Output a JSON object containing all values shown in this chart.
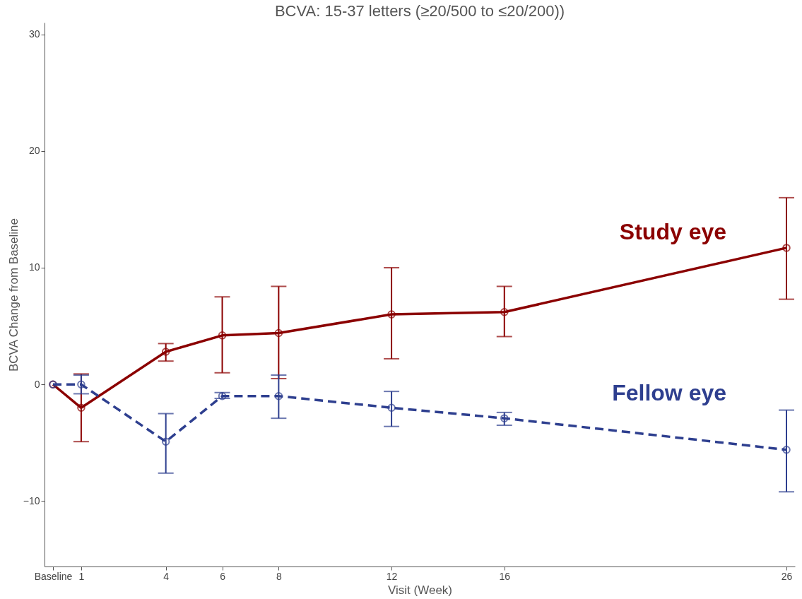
{
  "chart_data": {
    "type": "line",
    "title": "BCVA: 15-37 letters (≥20/500 to ≤20/200))",
    "xlabel": "Visit (Week)",
    "ylabel": "BCVA Change from Baseline",
    "x": [
      0,
      1,
      4,
      6,
      8,
      12,
      16,
      26
    ],
    "xlim": [
      -0.3,
      26.3
    ],
    "xticks": [
      {
        "value": 0,
        "label": "Baseline"
      },
      1,
      4,
      6,
      8,
      12,
      16,
      26
    ],
    "ylim": [
      -15.6,
      31
    ],
    "yticks": [
      -10,
      0,
      10,
      20,
      30
    ],
    "series": [
      {
        "name": "Study eye",
        "color": "#8b0000",
        "line_style": "solid",
        "values": [
          0,
          -2.0,
          2.8,
          4.2,
          4.4,
          6.0,
          6.2,
          11.7
        ],
        "errors": [
          null,
          [
            -4.9,
            0.9
          ],
          [
            2.0,
            3.5
          ],
          [
            1.0,
            7.5
          ],
          [
            0.5,
            8.4
          ],
          [
            2.2,
            10.0
          ],
          [
            4.1,
            8.4
          ],
          [
            7.3,
            16.0
          ]
        ]
      },
      {
        "name": "Fellow eye",
        "color": "#2e3f8f",
        "line_style": "dashed",
        "values": [
          0,
          0,
          -4.9,
          -1.0,
          -1.0,
          -2.0,
          -2.9,
          -5.6
        ],
        "errors": [
          null,
          [
            -0.8,
            0.8
          ],
          [
            -7.6,
            -2.5
          ],
          [
            -1.2,
            -0.7
          ],
          [
            -2.9,
            0.8
          ],
          [
            -3.6,
            -0.6
          ],
          [
            -3.5,
            -2.4
          ],
          [
            -9.2,
            -2.2
          ]
        ]
      }
    ],
    "marker": "circle",
    "grid": false,
    "legend": false
  }
}
